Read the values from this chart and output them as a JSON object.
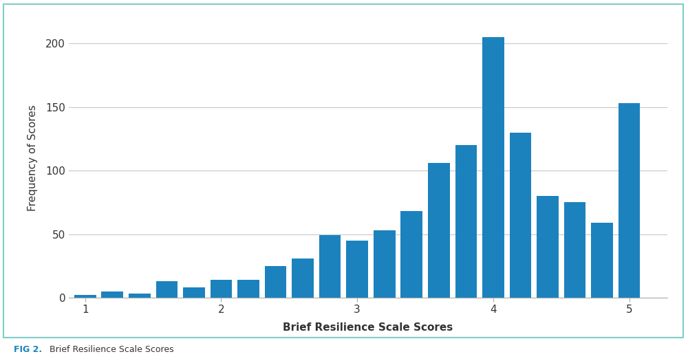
{
  "x_positions": [
    1.0,
    1.2,
    1.4,
    1.6,
    1.8,
    2.0,
    2.2,
    2.4,
    2.6,
    2.8,
    3.0,
    3.2,
    3.4,
    3.6,
    3.8,
    4.0,
    4.2,
    4.4,
    4.6,
    4.8,
    5.0
  ],
  "values": [
    2,
    5,
    3,
    13,
    8,
    14,
    14,
    25,
    31,
    49,
    45,
    53,
    68,
    106,
    120,
    205,
    130,
    80,
    75,
    59,
    153
  ],
  "bar_color": "#1b82be",
  "xlabel": "Brief Resilience Scale Scores",
  "ylabel": "Frequency of Scores",
  "yticks": [
    0,
    50,
    100,
    150,
    200
  ],
  "xticks": [
    1,
    2,
    3,
    4,
    5
  ],
  "ylim": [
    0,
    220
  ],
  "xlim": [
    0.88,
    5.28
  ],
  "bar_width": 0.16,
  "caption_bold": "FIG 2.",
  "caption_text": " Brief Resilience Scale Scores",
  "background_color": "#ffffff",
  "grid_color": "#c8c8c8",
  "border_color": "#7ececa",
  "border_linewidth": 1.5
}
